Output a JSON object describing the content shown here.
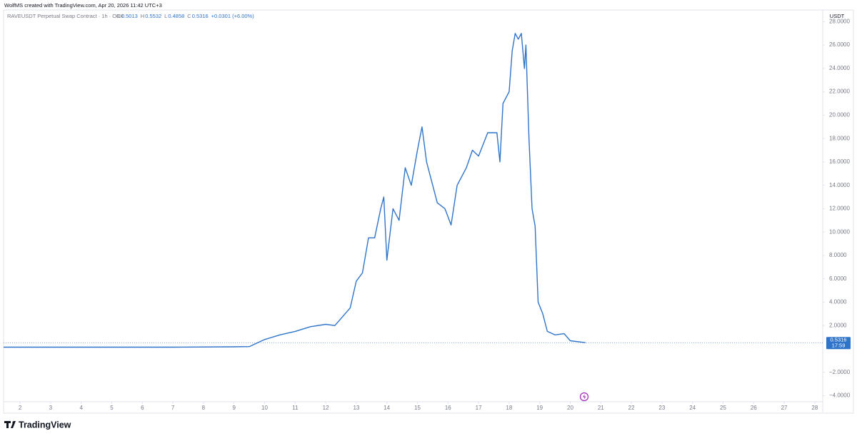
{
  "header": {
    "credit": "WolfMS created with TradingView.com, Apr 20, 2026 11:42 UTC+3"
  },
  "legend": {
    "symbol": "RAVEUSDT Perpetual Swap Contract · 1h · OKX",
    "ohlc": [
      {
        "key": "O",
        "value": 0.5013
      },
      {
        "key": "H",
        "value": 0.5532
      },
      {
        "key": "L",
        "value": 0.4858
      },
      {
        "key": "C",
        "value": 0.5316
      }
    ],
    "change": "+0.0301 (+6.00%)"
  },
  "chart_data": {
    "type": "line",
    "currency": "USDT",
    "color": "#2f74c8",
    "x": [
      1.46,
      3,
      5,
      7,
      9,
      9.5,
      10,
      10.5,
      11,
      11.5,
      12,
      12.3,
      12.5,
      12.8,
      13,
      13.2,
      13.4,
      13.6,
      13.8,
      13.9,
      14,
      14.2,
      14.4,
      14.6,
      14.8,
      15,
      15.15,
      15.3,
      15.5,
      15.65,
      15.9,
      16.1,
      16.3,
      16.6,
      16.8,
      17,
      17.3,
      17.6,
      17.7,
      17.8,
      18,
      18.1,
      18.2,
      18.3,
      18.4,
      18.5,
      18.55,
      18.65,
      18.75,
      18.85,
      18.95,
      19.1,
      19.25,
      19.5,
      19.8,
      20,
      20.3,
      20.5
    ],
    "values": [
      0.15,
      0.15,
      0.15,
      0.15,
      0.18,
      0.2,
      0.8,
      1.2,
      1.5,
      1.9,
      2.1,
      2.0,
      2.6,
      3.5,
      5.8,
      6.5,
      9.5,
      9.5,
      12,
      13,
      7.6,
      12,
      11,
      15.5,
      14,
      17,
      19,
      16,
      14,
      12.5,
      12,
      10.6,
      14,
      15.5,
      17,
      16.5,
      18.5,
      18.5,
      16,
      21,
      22,
      25.5,
      27,
      26.5,
      27,
      24,
      26,
      18,
      12,
      10.5,
      4,
      3,
      1.5,
      1.2,
      1.3,
      0.7,
      0.6,
      0.5316
    ],
    "xlim": [
      1.46,
      28.26
    ],
    "ylim": [
      -5.5,
      29
    ],
    "xticks": [
      2,
      3,
      4,
      5,
      6,
      7,
      8,
      9,
      10,
      11,
      12,
      13,
      14,
      15,
      16,
      17,
      18,
      19,
      20,
      21,
      22,
      23,
      24,
      25,
      26,
      27,
      28
    ],
    "yticks": [
      {
        "value": 28,
        "label": "28.0000"
      },
      {
        "value": 26,
        "label": "26.0000"
      },
      {
        "value": 24,
        "label": "24.0000"
      },
      {
        "value": 22,
        "label": "22.0000"
      },
      {
        "value": 20,
        "label": "20.0000"
      },
      {
        "value": 18,
        "label": "18.0000"
      },
      {
        "value": 16,
        "label": "16.0000"
      },
      {
        "value": 14,
        "label": "14.0000"
      },
      {
        "value": 12,
        "label": "12.0000"
      },
      {
        "value": 10,
        "label": "10.0000"
      },
      {
        "value": 8,
        "label": "8.0000"
      },
      {
        "value": 6,
        "label": "6.0000"
      },
      {
        "value": 4,
        "label": "4.0000"
      },
      {
        "value": 2,
        "label": "2.0000"
      },
      {
        "value": -2,
        "label": "−2.0000"
      },
      {
        "value": -4,
        "label": "−4.0000"
      }
    ],
    "last_price": 0.5316,
    "countdown": "17:59"
  },
  "footer": {
    "brand": "TradingView"
  }
}
